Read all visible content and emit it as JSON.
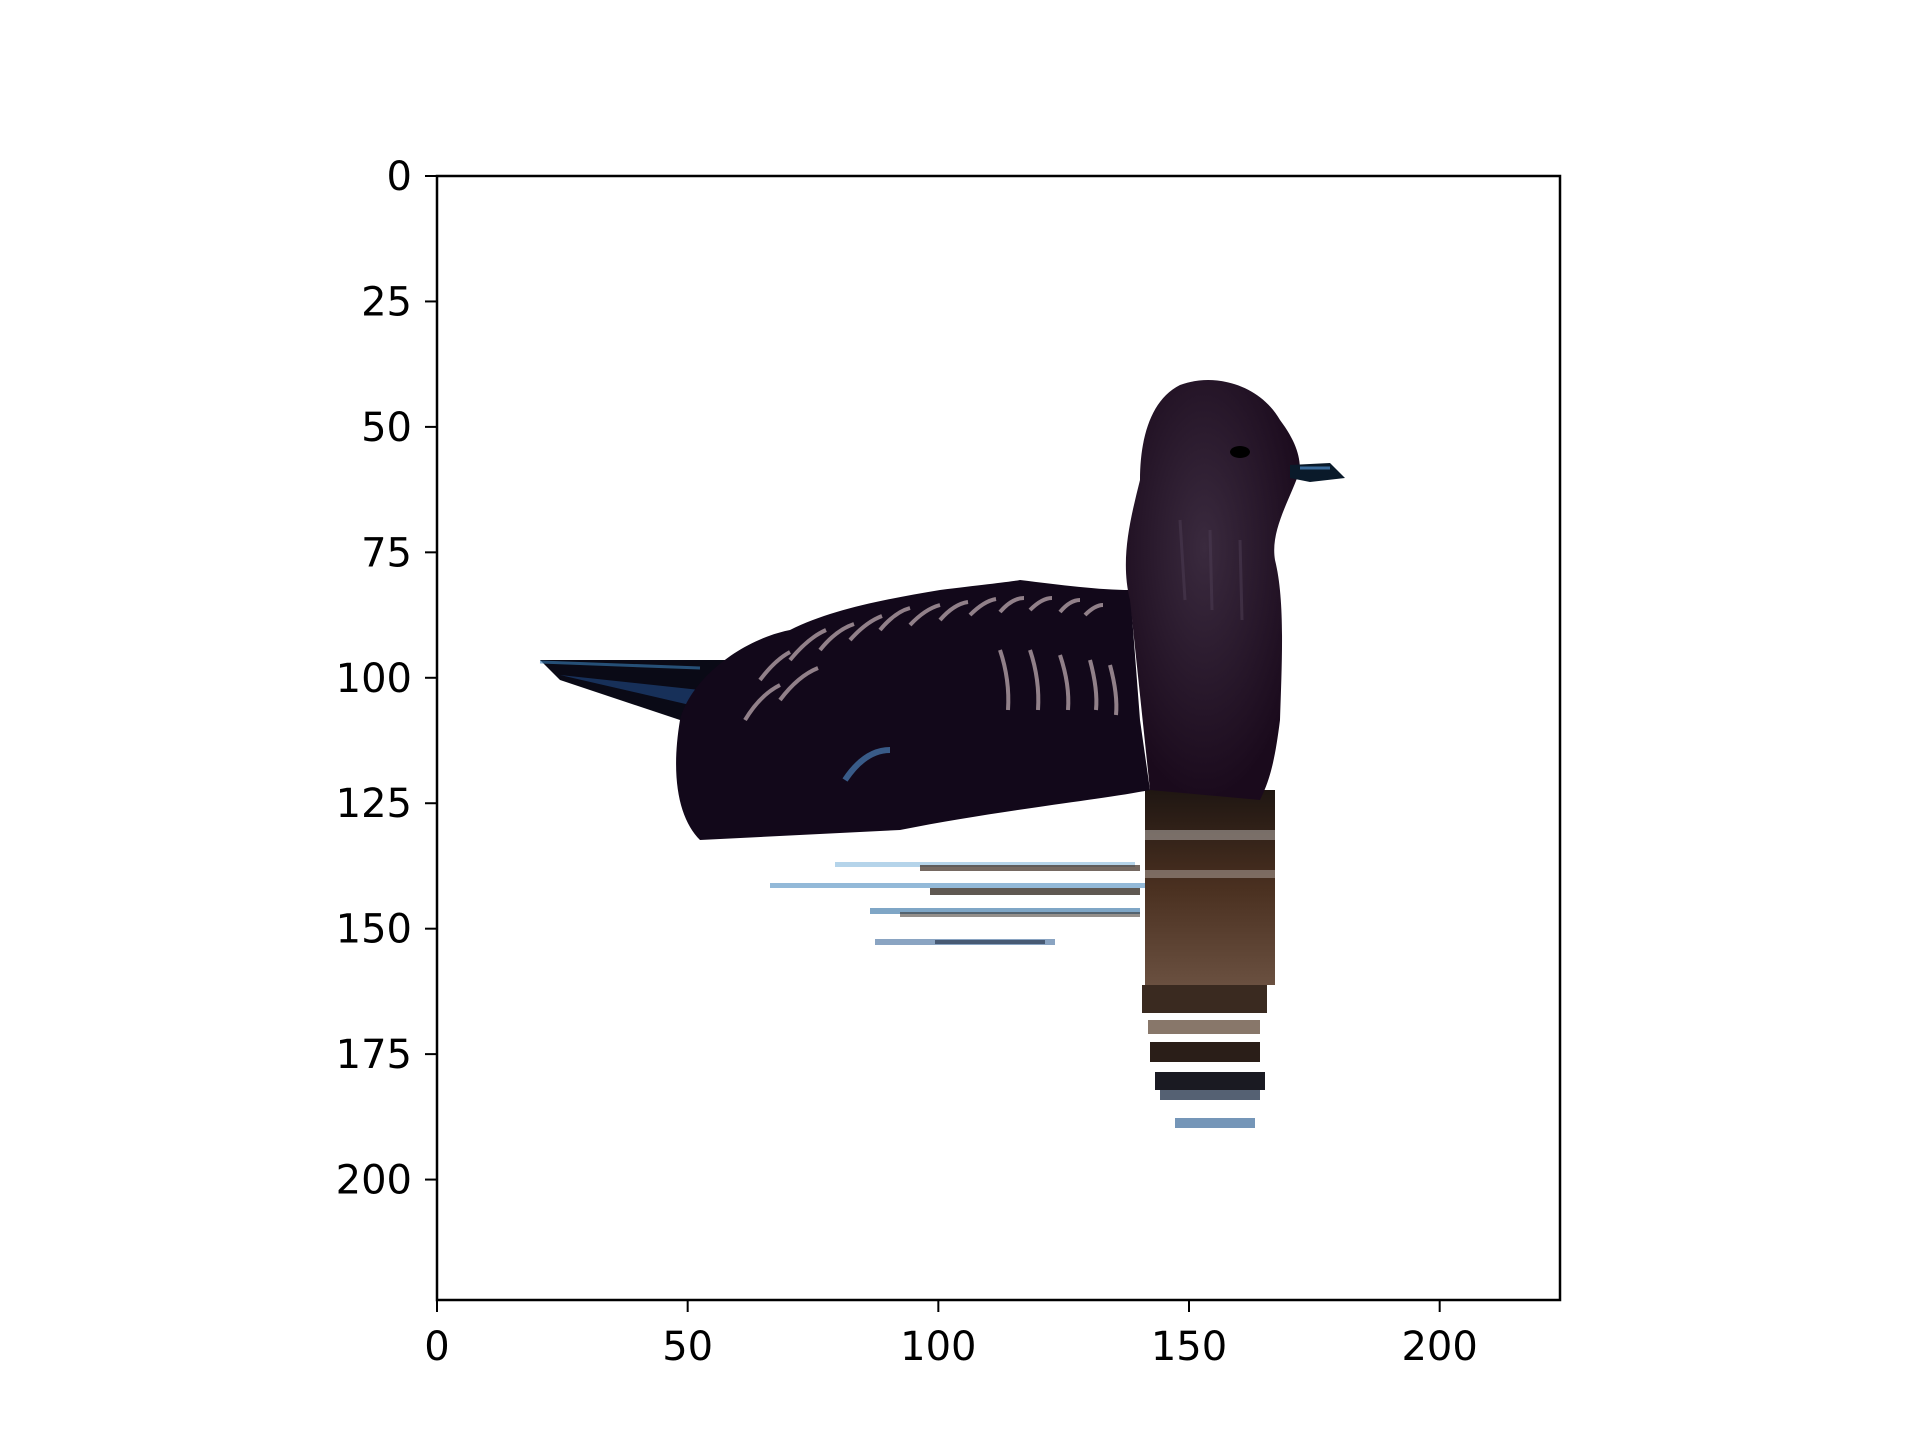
{
  "figure": {
    "subject": "bird-on-water-silhouette",
    "colors": {
      "background": "#ffffff",
      "axes": "#000000",
      "bird_body": "#1a0a1c",
      "bird_head": "#2a1a2e",
      "feather_highlight": "#c8b4b8",
      "reflection_dark": "#1f1612",
      "reflection_brown": "#4a3020",
      "ripple_blue": "#3a7fb8"
    }
  },
  "axes": {
    "xlim": [
      0,
      224
    ],
    "ylim": [
      224,
      0
    ],
    "x_ticks": [
      {
        "value": 0,
        "label": "0"
      },
      {
        "value": 50,
        "label": "50"
      },
      {
        "value": 100,
        "label": "100"
      },
      {
        "value": 150,
        "label": "150"
      },
      {
        "value": 200,
        "label": "200"
      }
    ],
    "y_ticks": [
      {
        "value": 0,
        "label": "0"
      },
      {
        "value": 25,
        "label": "25"
      },
      {
        "value": 50,
        "label": "50"
      },
      {
        "value": 75,
        "label": "75"
      },
      {
        "value": 100,
        "label": "100"
      },
      {
        "value": 125,
        "label": "125"
      },
      {
        "value": 150,
        "label": "150"
      },
      {
        "value": 175,
        "label": "175"
      },
      {
        "value": 200,
        "label": "200"
      }
    ]
  }
}
